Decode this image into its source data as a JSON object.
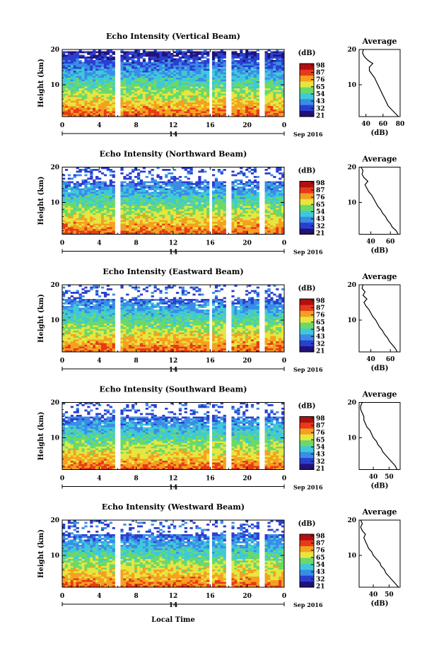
{
  "colorbar": {
    "unit": "(dB)",
    "ticks": [
      "21",
      "32",
      "43",
      "54",
      "65",
      "76",
      "87",
      "98"
    ],
    "colors": [
      "#21127a",
      "#2a3fcf",
      "#3a8ce8",
      "#3fc9d8",
      "#6ad96a",
      "#e6e640",
      "#f5a020",
      "#e83a18",
      "#b01010"
    ]
  },
  "date_label": "Sep 2016",
  "xaxis_title": "Local Time",
  "ylabel": "Height (km)",
  "avg_title": "Average",
  "avg_xlabel": "(dB)",
  "chart_data": [
    {
      "type": "heatmap",
      "title": "Echo Intensity (Vertical Beam)",
      "x_ticks": [
        "0",
        "4",
        "8",
        "12",
        "16",
        "20",
        "0"
      ],
      "x_range": [
        0,
        24
      ],
      "day_label": "14",
      "y_ticks": [
        "10",
        "20"
      ],
      "y_range": [
        1,
        20
      ],
      "gaps": [
        [
          5.8,
          6.2
        ],
        [
          15.9,
          16.3
        ],
        [
          17.8,
          18.2
        ],
        [
          21.4,
          21.8
        ]
      ],
      "cutoff_height": 19.5,
      "avg_profile": {
        "x_ticks": [
          "40",
          "60",
          "80"
        ],
        "xlim": [
          32,
          80
        ],
        "heights": [
          1,
          2,
          3,
          4,
          5,
          6,
          7,
          8,
          9,
          10,
          11,
          12,
          13,
          14,
          15,
          16,
          17,
          18,
          19,
          20
        ],
        "values": [
          78,
          74,
          70,
          66,
          64,
          62,
          60,
          58,
          56,
          54,
          52,
          50,
          47,
          44,
          44,
          48,
          42,
          38,
          36,
          37
        ]
      }
    },
    {
      "type": "heatmap",
      "title": "Echo Intensity (Northward Beam)",
      "x_ticks": [
        "0",
        "4",
        "8",
        "12",
        "16",
        "20",
        "0"
      ],
      "x_range": [
        0,
        24
      ],
      "day_label": "14",
      "y_ticks": [
        "10",
        "20"
      ],
      "y_range": [
        1,
        20
      ],
      "gaps": [
        [
          5.8,
          6.2
        ],
        [
          15.9,
          16.3
        ],
        [
          17.8,
          18.2
        ],
        [
          21.4,
          21.8
        ]
      ],
      "cutoff_height": 16,
      "avg_profile": {
        "x_ticks": [
          "40",
          "60"
        ],
        "xlim": [
          28,
          70
        ],
        "heights": [
          1,
          2,
          3,
          4,
          5,
          6,
          7,
          8,
          9,
          10,
          11,
          12,
          13,
          14,
          15,
          16,
          17,
          18,
          19,
          20
        ],
        "values": [
          68,
          66,
          62,
          60,
          57,
          55,
          52,
          50,
          47,
          45,
          43,
          41,
          38,
          36,
          34,
          37,
          33,
          31,
          32,
          30
        ]
      }
    },
    {
      "type": "heatmap",
      "title": "Echo Intensity (Eastward Beam)",
      "x_ticks": [
        "0",
        "4",
        "8",
        "12",
        "16",
        "20",
        "0"
      ],
      "x_range": [
        0,
        24
      ],
      "day_label": "14",
      "y_ticks": [
        "10",
        "20"
      ],
      "y_range": [
        1,
        20
      ],
      "gaps": [
        [
          5.8,
          6.2
        ],
        [
          15.9,
          16.3
        ],
        [
          17.8,
          18.2
        ],
        [
          21.4,
          21.8
        ]
      ],
      "cutoff_height": 16,
      "avg_profile": {
        "x_ticks": [
          "40",
          "60"
        ],
        "xlim": [
          28,
          70
        ],
        "heights": [
          1,
          2,
          3,
          4,
          5,
          6,
          7,
          8,
          9,
          10,
          11,
          12,
          13,
          14,
          15,
          16,
          17,
          18,
          19,
          20
        ],
        "values": [
          67,
          65,
          62,
          59,
          57,
          54,
          52,
          49,
          47,
          45,
          42,
          40,
          38,
          35,
          33,
          36,
          32,
          34,
          31,
          32
        ]
      }
    },
    {
      "type": "heatmap",
      "title": "Echo Intensity (Southward Beam)",
      "x_ticks": [
        "0",
        "4",
        "8",
        "12",
        "16",
        "20",
        "0"
      ],
      "x_range": [
        0,
        24
      ],
      "day_label": "14",
      "y_ticks": [
        "10",
        "20"
      ],
      "y_range": [
        1,
        20
      ],
      "gaps": [
        [
          5.8,
          6.2
        ],
        [
          15.9,
          16.3
        ],
        [
          17.8,
          18.2
        ],
        [
          21.4,
          21.8
        ]
      ],
      "cutoff_height": 16,
      "avg_profile": {
        "x_ticks": [
          "40",
          "50"
        ],
        "xlim": [
          31,
          57
        ],
        "heights": [
          1,
          2,
          3,
          4,
          5,
          6,
          7,
          8,
          9,
          10,
          11,
          12,
          13,
          14,
          15,
          16,
          17,
          18,
          19,
          20
        ],
        "values": [
          55,
          54,
          52,
          50,
          48,
          46,
          45,
          43,
          42,
          40,
          39,
          38,
          36,
          35,
          34,
          34,
          33,
          32,
          32,
          33
        ]
      }
    },
    {
      "type": "heatmap",
      "title": "Echo Intensity (Westward Beam)",
      "x_ticks": [
        "0",
        "4",
        "8",
        "12",
        "16",
        "20",
        "0"
      ],
      "x_range": [
        0,
        24
      ],
      "day_label": "14",
      "y_ticks": [
        "10",
        "20"
      ],
      "y_range": [
        1,
        20
      ],
      "gaps": [
        [
          5.8,
          6.2
        ],
        [
          15.9,
          16.3
        ],
        [
          17.8,
          18.2
        ],
        [
          21.4,
          21.8
        ]
      ],
      "cutoff_height": 16,
      "avg_profile": {
        "x_ticks": [
          "40",
          "50"
        ],
        "xlim": [
          31,
          57
        ],
        "heights": [
          1,
          2,
          3,
          4,
          5,
          6,
          7,
          8,
          9,
          10,
          11,
          12,
          13,
          14,
          15,
          16,
          17,
          18,
          19,
          20
        ],
        "values": [
          56,
          54,
          52,
          50,
          48,
          47,
          45,
          44,
          42,
          40,
          39,
          37,
          36,
          35,
          34,
          35,
          33,
          32,
          33,
          32
        ]
      }
    }
  ]
}
